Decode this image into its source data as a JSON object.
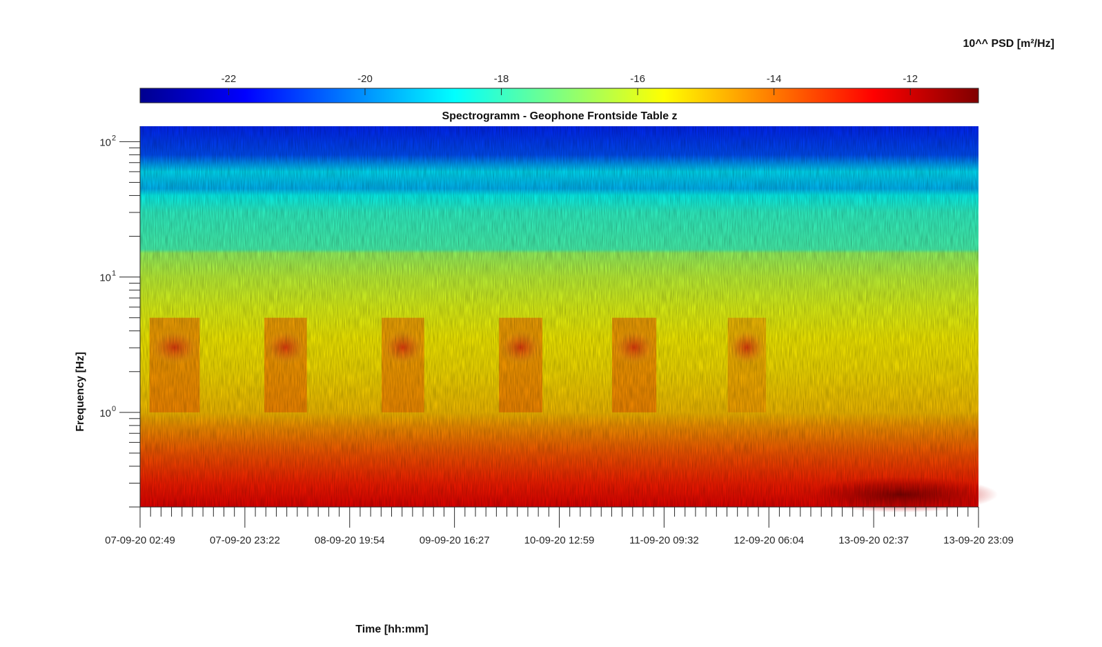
{
  "chart_data": {
    "type": "heatmap",
    "title": "Spectrogramm - Geophone Frontside Table z",
    "xlabel": "Time [hh:mm]",
    "ylabel": "Frequency [Hz]",
    "y_scale": "log",
    "ylim_hz": [
      0.2,
      130
    ],
    "y_ticks": [
      {
        "base": "10",
        "exp": "0",
        "value": 1
      },
      {
        "base": "10",
        "exp": "1",
        "value": 10
      },
      {
        "base": "10",
        "exp": "2",
        "value": 100
      }
    ],
    "x_ticks": [
      "07-09-20 02:49",
      "07-09-20 23:22",
      "08-09-20 19:54",
      "09-09-20 16:27",
      "10-09-20 12:59",
      "11-09-20 09:32",
      "12-09-20 06:04",
      "13-09-20 02:37",
      "13-09-20 23:09"
    ],
    "colorbar": {
      "label": "10^^ PSD [m²/Hz]",
      "colormap": "jet",
      "range": [
        -23.3,
        -11
      ],
      "ticks": [
        "-22",
        "-20",
        "-18",
        "-16",
        "-14",
        "-12"
      ],
      "tick_values": [
        -22,
        -20,
        -18,
        -16,
        -14,
        -12
      ]
    },
    "psd_profile_by_frequency": [
      {
        "freq_hz": 0.2,
        "log10_psd": -12.3
      },
      {
        "freq_hz": 0.3,
        "log10_psd": -12.9
      },
      {
        "freq_hz": 0.5,
        "log10_psd": -13.6
      },
      {
        "freq_hz": 0.8,
        "log10_psd": -14.4
      },
      {
        "freq_hz": 1.0,
        "log10_psd": -14.9
      },
      {
        "freq_hz": 2.0,
        "log10_psd": -15.3
      },
      {
        "freq_hz": 3.5,
        "log10_psd": -15.5
      },
      {
        "freq_hz": 6.0,
        "log10_psd": -15.9
      },
      {
        "freq_hz": 10,
        "log10_psd": -16.3
      },
      {
        "freq_hz": 15,
        "log10_psd": -16.8
      },
      {
        "freq_hz": 16,
        "log10_psd": -17.8
      },
      {
        "freq_hz": 30,
        "log10_psd": -18.1
      },
      {
        "freq_hz": 40,
        "log10_psd": -18.6
      },
      {
        "freq_hz": 45,
        "log10_psd": -19.5
      },
      {
        "freq_hz": 60,
        "log10_psd": -19.0
      },
      {
        "freq_hz": 80,
        "log10_psd": -20.8
      },
      {
        "freq_hz": 130,
        "log10_psd": -21.3
      }
    ],
    "daily_activity_bursts": [
      {
        "start": "07-09-20 04:40",
        "end": "07-09-20 14:30",
        "freq_band_hz": [
          1.0,
          5.0
        ],
        "log10_psd": -13.7
      },
      {
        "start": "08-09-20 03:10",
        "end": "08-09-20 11:30",
        "freq_band_hz": [
          1.0,
          5.0
        ],
        "log10_psd": -13.7
      },
      {
        "start": "09-09-20 02:10",
        "end": "09-09-20 10:30",
        "freq_band_hz": [
          1.0,
          5.0
        ],
        "log10_psd": -13.8
      },
      {
        "start": "10-09-20 01:10",
        "end": "10-09-20 09:40",
        "freq_band_hz": [
          1.0,
          5.0
        ],
        "log10_psd": -13.7
      },
      {
        "start": "10-09-20 23:20",
        "end": "11-09-20 08:00",
        "freq_band_hz": [
          1.0,
          5.0
        ],
        "log10_psd": -13.7
      },
      {
        "start": "11-09-20 22:00",
        "end": "12-09-20 05:30",
        "freq_band_hz": [
          1.0,
          5.0
        ],
        "log10_psd": -14.3
      }
    ]
  }
}
